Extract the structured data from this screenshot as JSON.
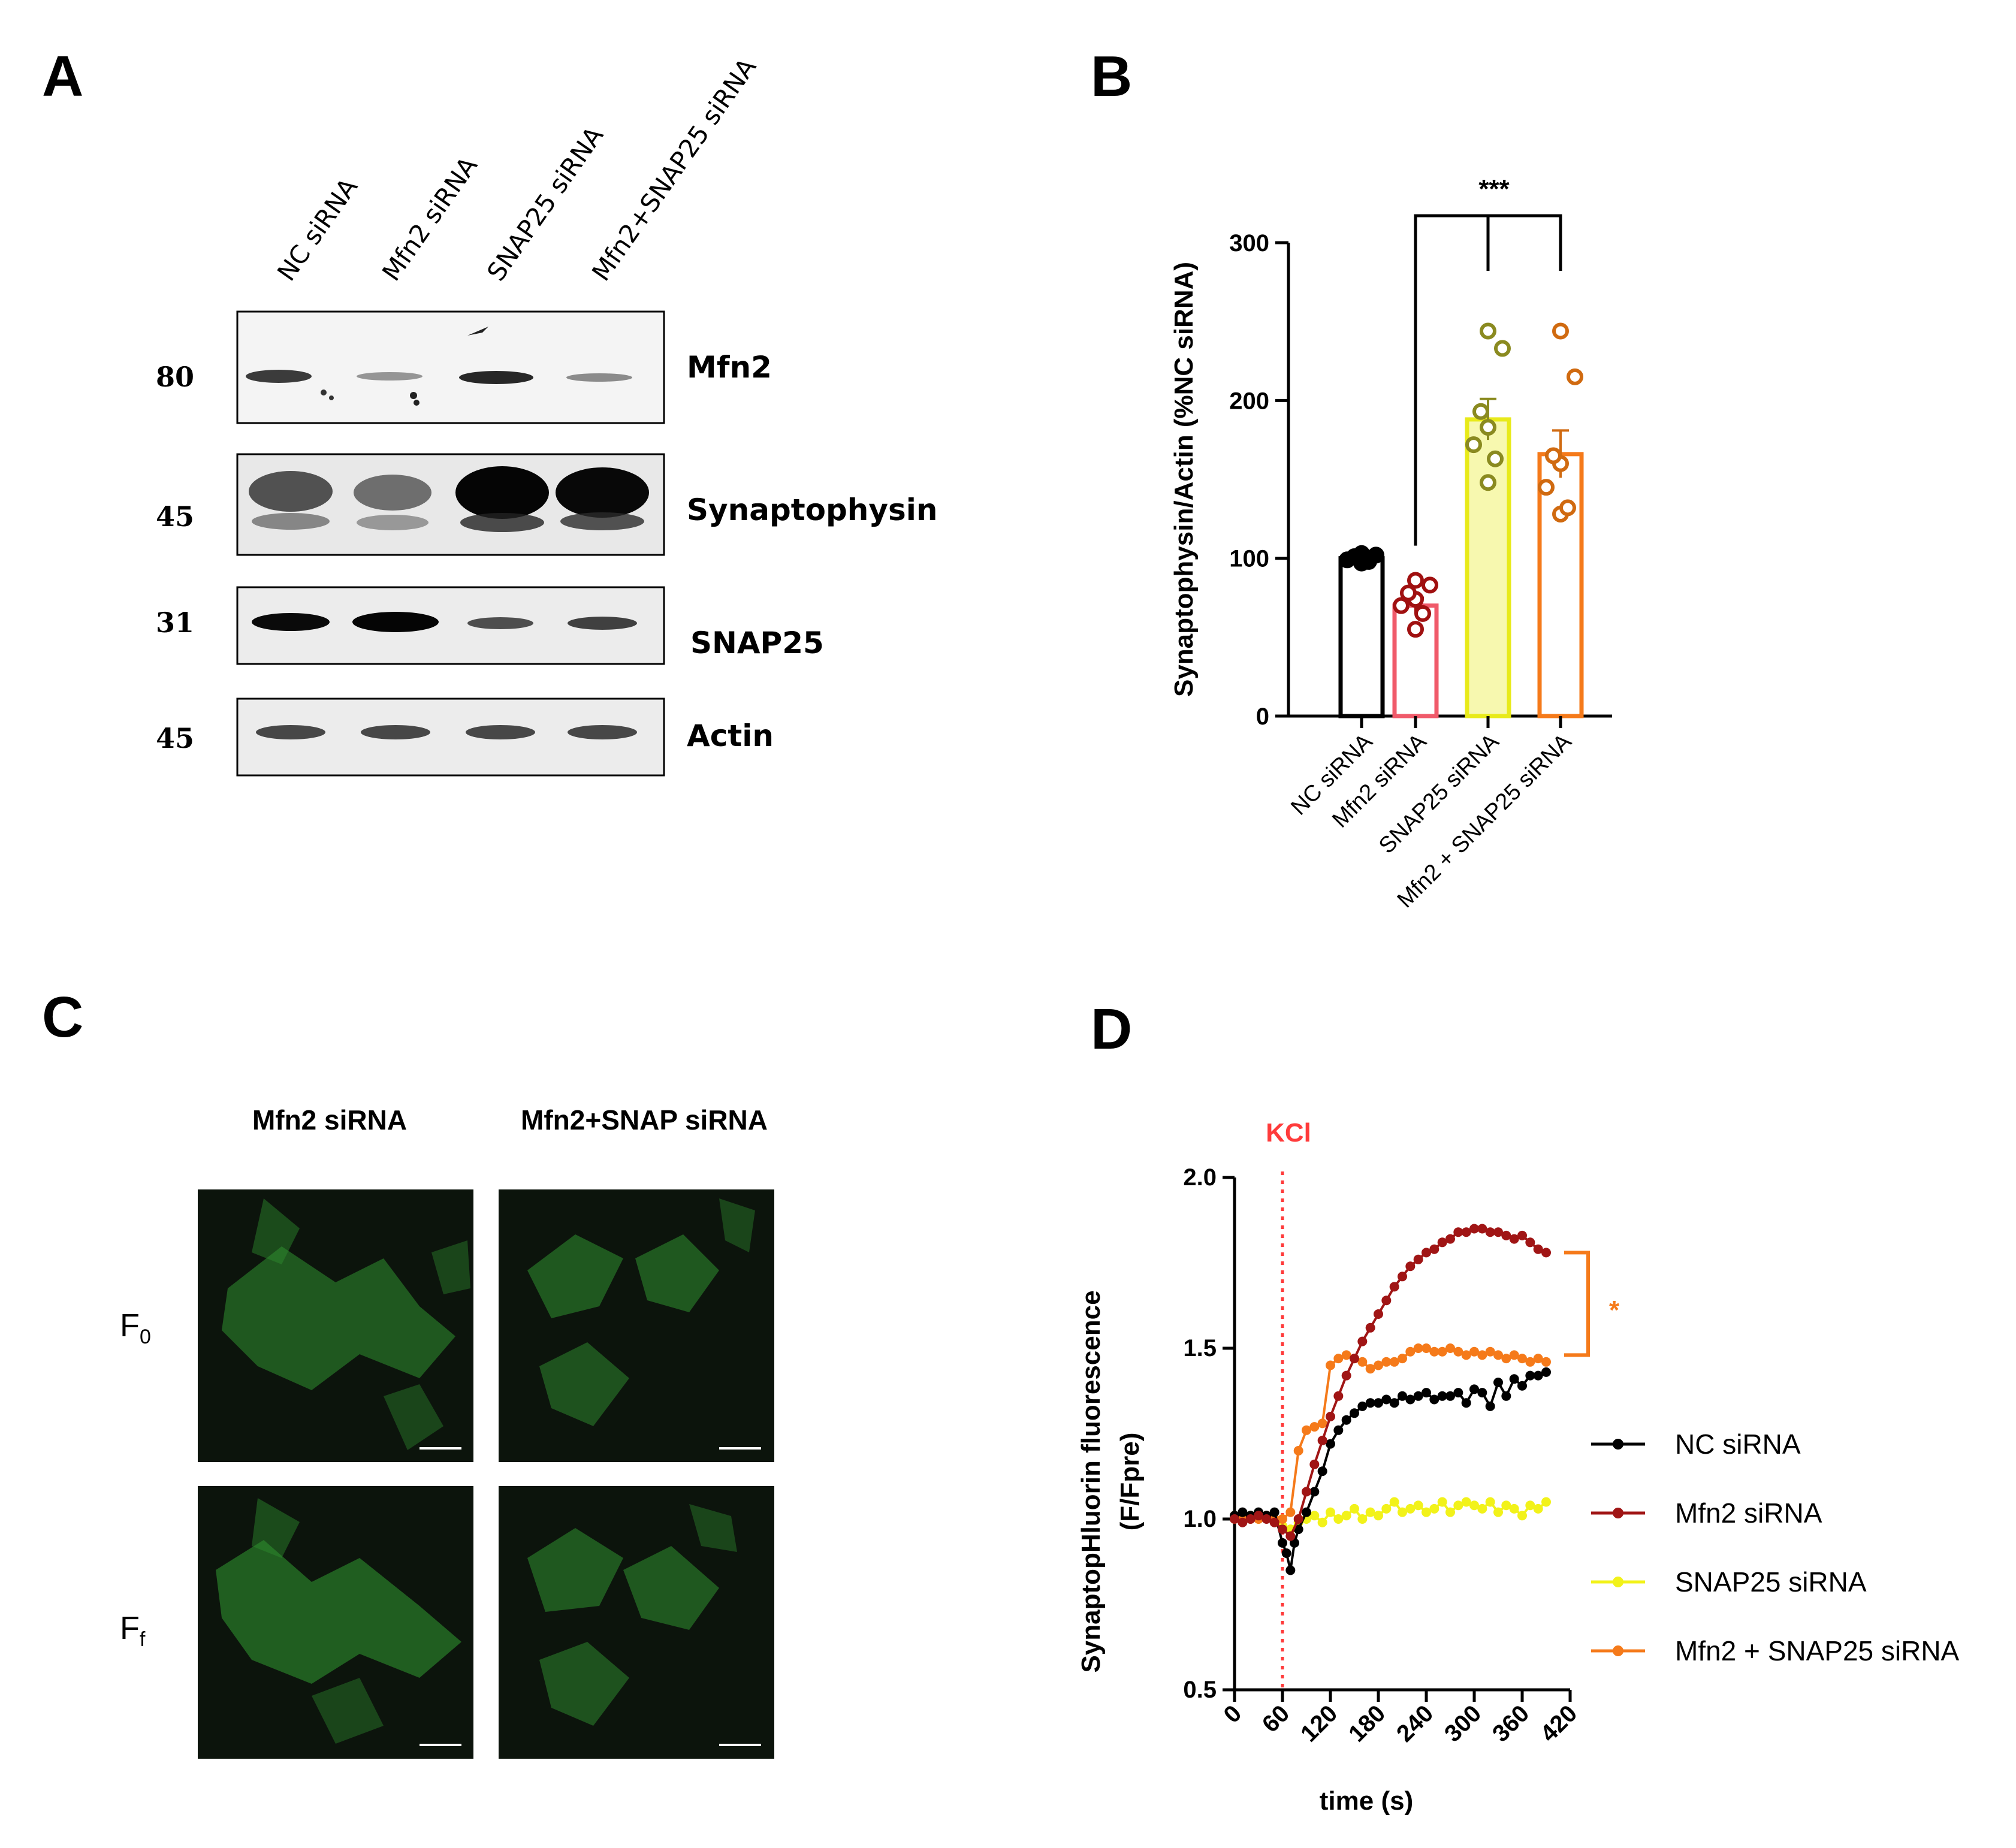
{
  "panels": {
    "a": "A",
    "b": "B",
    "c": "C",
    "d": "D"
  },
  "blot": {
    "lanes": [
      "NC siRNA",
      "Mfn2 siRNA",
      "SNAP25 siRNA",
      "Mfn2+SNAP25 siRNA"
    ],
    "rows": [
      {
        "name": "Mfn2",
        "mw": "80"
      },
      {
        "name": "Synaptophysin",
        "mw": "45"
      },
      {
        "name": "SNAP25",
        "mw": "31"
      },
      {
        "name": "Actin",
        "mw": "45"
      }
    ]
  },
  "micro": {
    "col1": "Mfn2 siRNA",
    "col2": "Mfn2+SNAP siRNA",
    "row1_main": "F",
    "row1_sub": "0",
    "row2_main": "F",
    "row2_sub": "f"
  },
  "colors": {
    "nc": "#000000",
    "mfn2_bar": "#f05a6a",
    "mfn2_pts": "#a01010",
    "snap25_bar": "#e8ea1a",
    "snap25_pts": "#8a8a20",
    "combo": "#f57a1a",
    "combo_pts": "#d06a10",
    "kcl": "#ff3b3b",
    "micro_bg": "#0c140c",
    "cell": "#2f8f2f"
  },
  "chart_data": [
    {
      "type": "bar",
      "ylabel": "Synaptophysin/Actin (%NC siRNA)",
      "categories": [
        "NC siRNA",
        "Mfn2 siRNA",
        "SNAP25 siRNA",
        "Mfn2 + SNAP25 siRNA"
      ],
      "values": [
        100,
        70,
        188,
        166
      ],
      "sem": [
        1,
        5,
        13,
        15
      ],
      "points": [
        [
          97,
          98,
          99,
          100,
          101,
          102,
          103
        ],
        [
          55,
          65,
          70,
          74,
          78,
          83,
          86
        ],
        [
          148,
          163,
          172,
          183,
          193,
          233,
          244
        ],
        [
          128,
          132,
          145,
          160,
          165,
          215,
          244
        ]
      ],
      "yticks": [
        0,
        100,
        200,
        300
      ],
      "ylim": [
        0,
        300
      ],
      "significance": "***"
    },
    {
      "type": "line",
      "xlabel": "time (s)",
      "ylabel": "SynaptopHluorin fluorescence",
      "ylabel2": "(F/Fpre)",
      "xticks": [
        0,
        60,
        120,
        180,
        240,
        300,
        360,
        420
      ],
      "yticks": [
        "0.5",
        "1.0",
        "1.5",
        "2.0"
      ],
      "xlim": [
        0,
        420
      ],
      "ylim": [
        0.5,
        2.0
      ],
      "annotation": "KCl",
      "annotation_x": 60,
      "significance": "*",
      "series": [
        {
          "name": "NC siRNA",
          "x": [
            0,
            10,
            20,
            30,
            40,
            50,
            60,
            65,
            70,
            75,
            80,
            90,
            100,
            110,
            120,
            130,
            140,
            150,
            160,
            170,
            180,
            190,
            200,
            210,
            220,
            230,
            240,
            250,
            260,
            270,
            280,
            290,
            300,
            310,
            320,
            330,
            340,
            350,
            360,
            370,
            380,
            390
          ],
          "y": [
            1.01,
            1.02,
            1.01,
            1.02,
            1.01,
            1.02,
            0.93,
            0.9,
            0.85,
            0.93,
            0.97,
            1.02,
            1.08,
            1.14,
            1.22,
            1.26,
            1.29,
            1.31,
            1.33,
            1.34,
            1.34,
            1.35,
            1.34,
            1.36,
            1.35,
            1.36,
            1.37,
            1.35,
            1.36,
            1.36,
            1.37,
            1.34,
            1.38,
            1.37,
            1.33,
            1.4,
            1.36,
            1.41,
            1.39,
            1.42,
            1.42,
            1.43
          ]
        },
        {
          "name": "Mfn2 siRNA",
          "x": [
            0,
            10,
            20,
            30,
            40,
            50,
            60,
            70,
            80,
            90,
            100,
            110,
            120,
            130,
            140,
            150,
            160,
            170,
            180,
            190,
            200,
            210,
            220,
            230,
            240,
            250,
            260,
            270,
            280,
            290,
            300,
            310,
            320,
            330,
            340,
            350,
            360,
            370,
            380,
            390
          ],
          "y": [
            1.0,
            0.99,
            1.0,
            1.01,
            1.0,
            0.99,
            0.97,
            0.95,
            1.0,
            1.08,
            1.16,
            1.23,
            1.3,
            1.36,
            1.42,
            1.47,
            1.52,
            1.56,
            1.6,
            1.64,
            1.68,
            1.71,
            1.74,
            1.76,
            1.78,
            1.79,
            1.81,
            1.82,
            1.84,
            1.84,
            1.85,
            1.85,
            1.84,
            1.84,
            1.83,
            1.82,
            1.83,
            1.81,
            1.79,
            1.78
          ]
        },
        {
          "name": "SNAP25 siRNA",
          "x": [
            0,
            10,
            20,
            30,
            40,
            50,
            60,
            70,
            80,
            90,
            100,
            110,
            120,
            130,
            140,
            150,
            160,
            170,
            180,
            190,
            200,
            210,
            220,
            230,
            240,
            250,
            260,
            270,
            280,
            290,
            300,
            310,
            320,
            330,
            340,
            350,
            360,
            370,
            380,
            390
          ],
          "y": [
            1.01,
            1.0,
            1.01,
            1.0,
            1.01,
            1.0,
            0.98,
            0.97,
            0.99,
            1.0,
            1.01,
            0.99,
            1.02,
            1.0,
            1.01,
            1.03,
            1.0,
            1.02,
            1.01,
            1.03,
            1.05,
            1.02,
            1.03,
            1.04,
            1.02,
            1.03,
            1.05,
            1.02,
            1.04,
            1.05,
            1.04,
            1.03,
            1.05,
            1.02,
            1.04,
            1.03,
            1.01,
            1.04,
            1.03,
            1.05
          ]
        },
        {
          "name": "Mfn2 + SNAP25 siRNA",
          "x": [
            0,
            10,
            20,
            30,
            40,
            50,
            60,
            70,
            80,
            90,
            100,
            110,
            120,
            130,
            140,
            150,
            160,
            170,
            180,
            190,
            200,
            210,
            220,
            230,
            240,
            250,
            260,
            270,
            280,
            290,
            300,
            310,
            320,
            330,
            340,
            350,
            360,
            370,
            380,
            390
          ],
          "y": [
            1.0,
            1.01,
            1.0,
            1.0,
            1.01,
            1.0,
            1.0,
            1.02,
            1.2,
            1.26,
            1.27,
            1.28,
            1.45,
            1.47,
            1.48,
            1.47,
            1.46,
            1.44,
            1.45,
            1.46,
            1.46,
            1.47,
            1.49,
            1.5,
            1.5,
            1.49,
            1.49,
            1.5,
            1.49,
            1.48,
            1.49,
            1.48,
            1.49,
            1.48,
            1.47,
            1.48,
            1.47,
            1.46,
            1.47,
            1.46
          ]
        }
      ]
    }
  ]
}
